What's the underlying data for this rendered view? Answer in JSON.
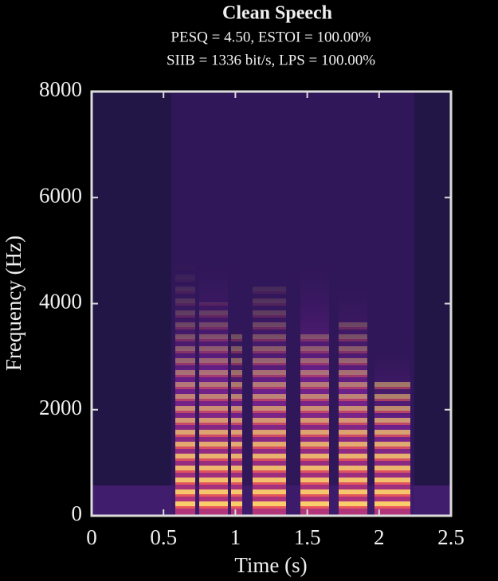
{
  "chart_data": {
    "type": "spectrogram",
    "title": "Clean Speech",
    "subtitles": [
      "PESQ = 4.50, ESTOI = 100.00%",
      "SIIB = 1336 bit/s, LPS = 100.00%"
    ],
    "x_label": "Time (s)",
    "y_label": "Frequency (Hz)",
    "xlim": [
      0,
      2.5
    ],
    "xticks": [
      0,
      0.5,
      1,
      1.5,
      2,
      2.5
    ],
    "ylim": [
      0,
      8000
    ],
    "yticks": [
      0,
      2000,
      4000,
      6000,
      8000
    ]
  }
}
